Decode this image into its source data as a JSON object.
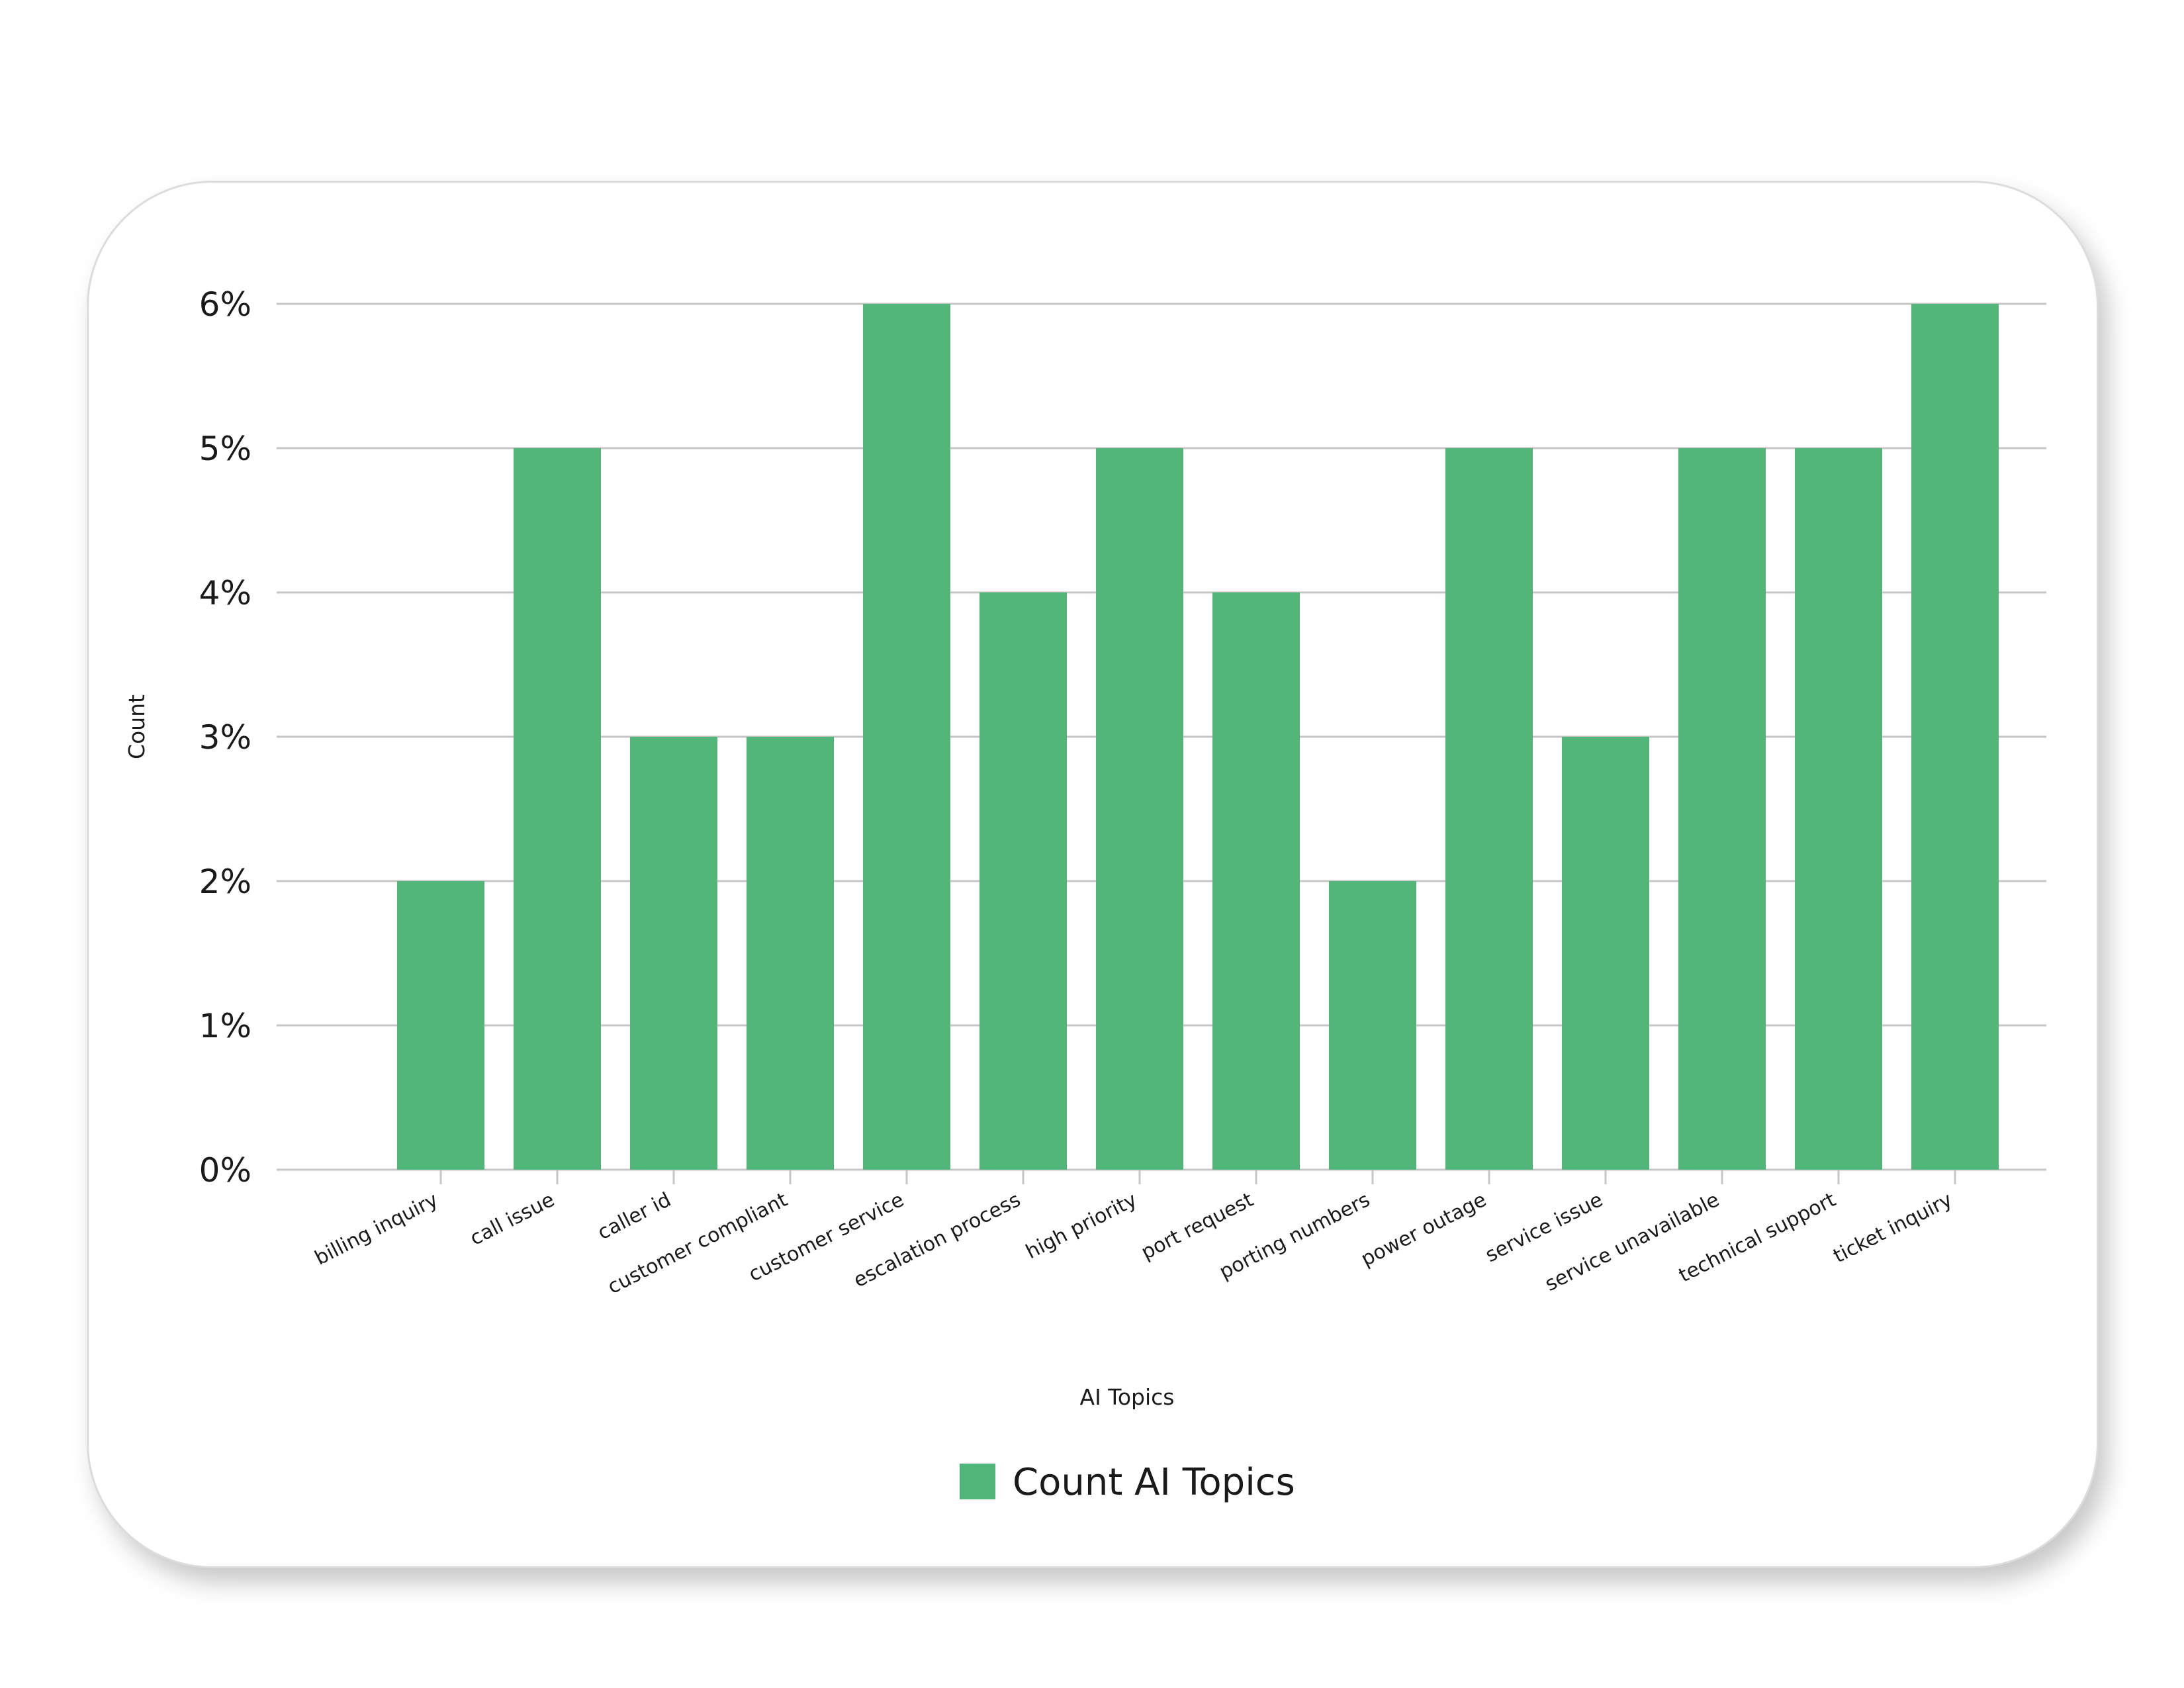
{
  "chart_data": {
    "type": "bar",
    "title": "",
    "xlabel": "AI Topics",
    "ylabel": "Count",
    "categories": [
      "billing inquiry",
      "call issue",
      "caller id",
      "customer compliant",
      "customer service",
      "escalation process",
      "high priority",
      "port request",
      "porting numbers",
      "power outage",
      "service issue",
      "service unavailable",
      "technical support",
      "ticket inquiry"
    ],
    "series": [
      {
        "name": "Count AI Topics",
        "values": [
          2,
          5,
          3,
          3,
          6,
          4,
          5,
          4,
          2,
          5,
          3,
          5,
          5,
          6
        ],
        "color": "#52b57a"
      }
    ],
    "y_ticks": [
      "0%",
      "1%",
      "2%",
      "3%",
      "4%",
      "5%",
      "6%"
    ],
    "ylim": [
      0,
      6
    ],
    "grid": true,
    "legend_position": "bottom-center"
  }
}
